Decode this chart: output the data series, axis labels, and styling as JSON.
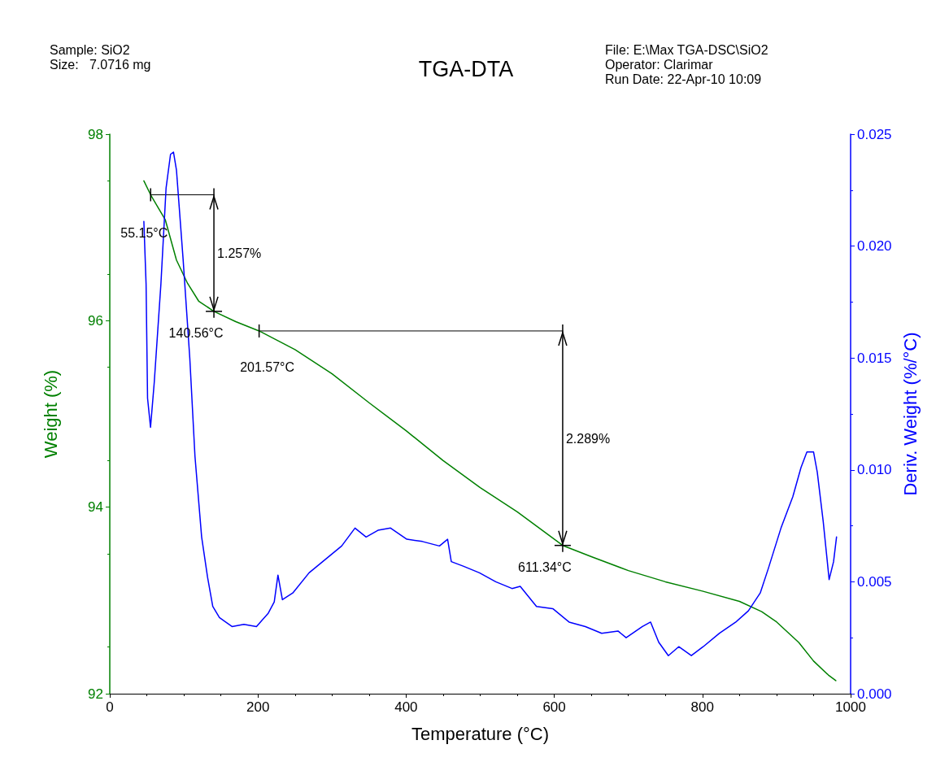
{
  "chart_data": {
    "type": "line",
    "title": "TGA-DTA",
    "xlabel": "Temperature (°C)",
    "ylabel": "Weight (%)",
    "y2label": "Deriv. Weight (%/°C)",
    "xlim": [
      0,
      1000
    ],
    "xticks": [
      0,
      200,
      400,
      600,
      800,
      1000
    ],
    "ylim": [
      92,
      98
    ],
    "yticks": [
      92,
      94,
      96,
      98
    ],
    "y2lim": [
      0,
      0.025
    ],
    "y2ticks": [
      {
        "value": 0,
        "label": "0.000"
      },
      0.005,
      {
        "value": 0.01,
        "label": "0.010"
      },
      0.015,
      {
        "value": 0.02,
        "label": "0.020"
      },
      0.025
    ],
    "grid": false,
    "marker": "none",
    "line_style": "solid",
    "series": [
      {
        "color": "#000000",
        "x": [
          55.15,
          140.56
        ],
        "values": [
          97.35,
          97.35
        ]
      },
      {
        "color": "#000000",
        "x": [
          201.57,
          611.34
        ],
        "values": [
          95.89,
          95.89
        ]
      },
      {
        "color": "#008000",
        "x": [
          46,
          55.15,
          75,
          90,
          105,
          120,
          140.56,
          170,
          201.57,
          250,
          300,
          350,
          400,
          450,
          500,
          550,
          611.34,
          650,
          700,
          750,
          800,
          850,
          880,
          900,
          930,
          950,
          970,
          980
        ],
        "values": [
          97.5,
          97.35,
          97.08,
          96.65,
          96.4,
          96.21,
          96.1,
          95.99,
          95.89,
          95.69,
          95.43,
          95.12,
          94.82,
          94.5,
          94.21,
          93.95,
          93.59,
          93.47,
          93.32,
          93.2,
          93.1,
          92.99,
          92.88,
          92.77,
          92.55,
          92.35,
          92.2,
          92.14
        ]
      },
      {
        "color": "#0000ff",
        "axis": "y2",
        "x": [
          46,
          49,
          51,
          55,
          60,
          69,
          76,
          82,
          86,
          90,
          99,
          108,
          115,
          124,
          132,
          139,
          148,
          165,
          181,
          198,
          214,
          222,
          227,
          233,
          247,
          269,
          291,
          313,
          331,
          346,
          362,
          379,
          401,
          422,
          445,
          456,
          461,
          477,
          499,
          521,
          543,
          554,
          576,
          598,
          620,
          642,
          664,
          686,
          697,
          719,
          730,
          741,
          754,
          768,
          785,
          801,
          823,
          845,
          862,
          878,
          889,
          906,
          922,
          933,
          941,
          950,
          955,
          963,
          971,
          977,
          981
        ],
        "values": [
          0.0211,
          0.0183,
          0.0132,
          0.0119,
          0.0139,
          0.0183,
          0.0226,
          0.0241,
          0.0242,
          0.0234,
          0.0194,
          0.015,
          0.0106,
          0.007,
          0.0052,
          0.0039,
          0.0034,
          0.003,
          0.0031,
          0.003,
          0.0036,
          0.0041,
          0.0053,
          0.0042,
          0.0045,
          0.0054,
          0.006,
          0.0066,
          0.0074,
          0.007,
          0.0073,
          0.0074,
          0.0069,
          0.0068,
          0.0066,
          0.0069,
          0.0059,
          0.0057,
          0.0054,
          0.005,
          0.0047,
          0.0048,
          0.0039,
          0.0038,
          0.0032,
          0.003,
          0.0027,
          0.0028,
          0.0025,
          0.003,
          0.0032,
          0.0023,
          0.0017,
          0.0021,
          0.0017,
          0.0021,
          0.0027,
          0.0032,
          0.0037,
          0.0045,
          0.0056,
          0.0074,
          0.0088,
          0.0101,
          0.0108,
          0.0108,
          0.0099,
          0.0077,
          0.0051,
          0.0059,
          0.007
        ]
      }
    ],
    "annotations": [
      "Sample: SiO2",
      "Size:   7.0716 mg",
      "File: E:\\Max TGA-DSC\\SiO2",
      "Operator: Clarimar",
      "Run Date: 22-Apr-10 10:09",
      {
        "text": "55.15°C",
        "x": 55.15,
        "y": 97.35
      },
      {
        "text": "140.56°C",
        "x": 140.56,
        "y": 96.1
      },
      "1.257%",
      {
        "text": "201.57°C",
        "x": 201.57,
        "y": 95.89
      },
      {
        "text": "611.34°C",
        "x": 611.34,
        "y": 93.59
      },
      "2.289%"
    ]
  }
}
